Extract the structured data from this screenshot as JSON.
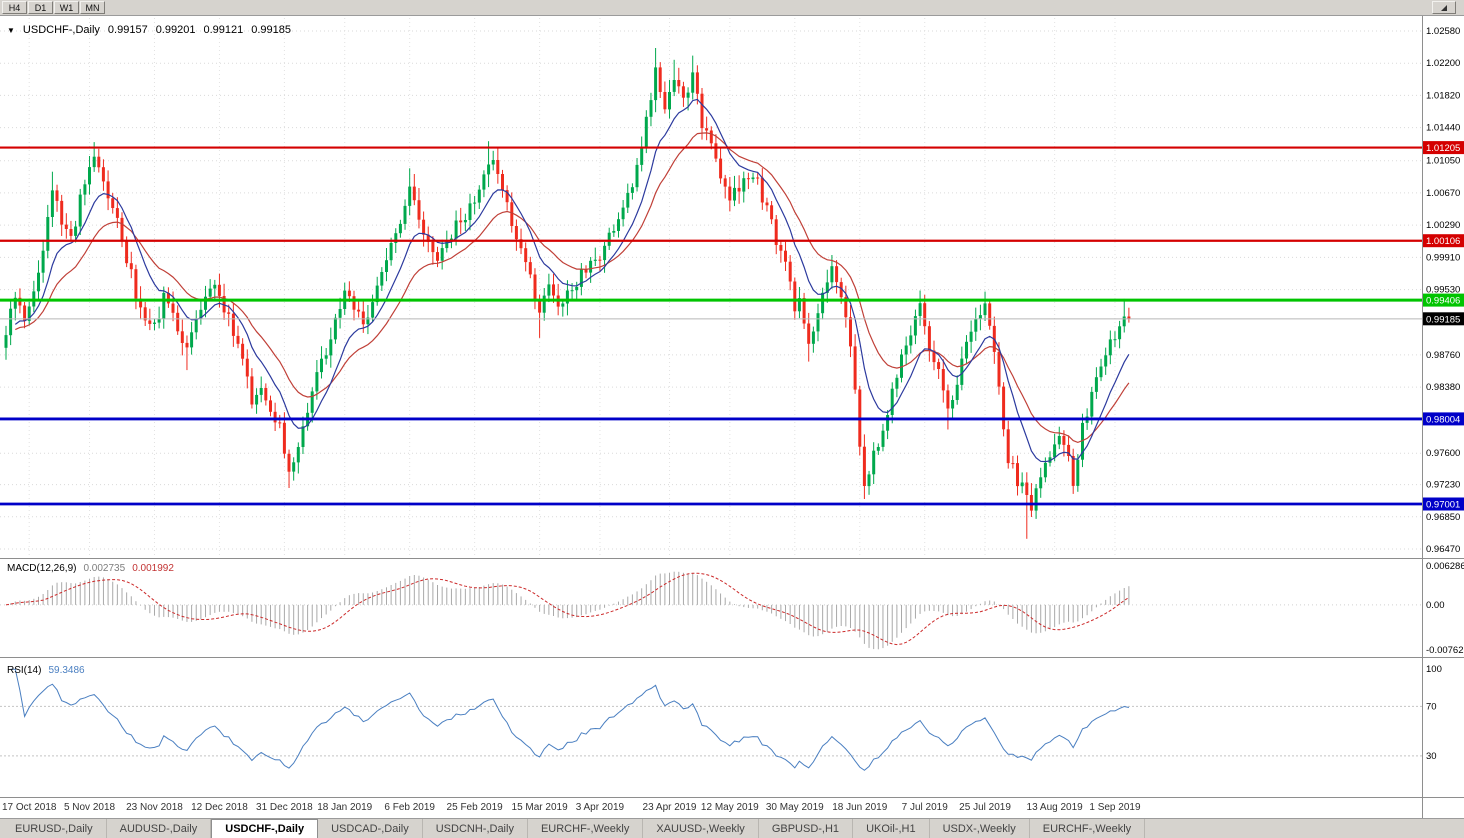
{
  "toolbar": {
    "timeframes": [
      "H4",
      "D1",
      "W1",
      "MN"
    ]
  },
  "chart_header": {
    "expander": "▼",
    "symbol_label": "USDCHF-,Daily",
    "open": "0.99157",
    "high": "0.99201",
    "low": "0.99121",
    "close": "0.99185"
  },
  "price_axis": {
    "ticks": [
      "1.02580",
      "1.02200",
      "1.01820",
      "1.01440",
      "1.01050",
      "1.00670",
      "1.00290",
      "0.99910",
      "0.99530",
      "0.98760",
      "0.98380",
      "0.97600",
      "0.97230",
      "0.96850",
      "0.96470"
    ],
    "tags": [
      {
        "value": "1.01205",
        "color": "#d40000"
      },
      {
        "value": "1.00106",
        "color": "#d40000"
      },
      {
        "value": "0.99406",
        "color": "#00c400"
      },
      {
        "value": "0.99185",
        "color": "#000000"
      },
      {
        "value": "0.98004",
        "color": "#0000c8"
      },
      {
        "value": "0.97001",
        "color": "#0000c8"
      }
    ]
  },
  "macd_panel": {
    "label": "MACD(12,26,9)",
    "value_main": "0.002735",
    "value_signal": "0.001992",
    "axis": [
      "0.006286",
      "0.00",
      "-0.00762"
    ]
  },
  "rsi_panel": {
    "label": "RSI(14)",
    "value": "59.3486",
    "axis": [
      "100",
      "70",
      "30"
    ]
  },
  "date_axis": {
    "labels": [
      [
        "17 Oct 2018",
        5
      ],
      [
        "5 Nov 2018",
        18
      ],
      [
        "23 Nov 2018",
        32
      ],
      [
        "12 Dec 2018",
        46
      ],
      [
        "31 Dec 2018",
        60
      ],
      [
        "18 Jan 2019",
        73
      ],
      [
        "6 Feb 2019",
        87
      ],
      [
        "25 Feb 2019",
        101
      ],
      [
        "15 Mar 2019",
        115
      ],
      [
        "3 Apr 2019",
        128
      ],
      [
        "23 Apr 2019",
        143
      ],
      [
        "12 May 2019",
        156
      ],
      [
        "30 May 2019",
        170
      ],
      [
        "18 Jun 2019",
        184
      ],
      [
        "7 Jul 2019",
        198
      ],
      [
        "25 Jul 2019",
        211
      ],
      [
        "13 Aug 2019",
        226
      ],
      [
        "1 Sep 2019",
        239
      ]
    ]
  },
  "tabs": {
    "items": [
      {
        "label": "EURUSD-,Daily",
        "active": false
      },
      {
        "label": "AUDUSD-,Daily",
        "active": false
      },
      {
        "label": "USDCHF-,Daily",
        "active": true
      },
      {
        "label": "USDCAD-,Daily",
        "active": false
      },
      {
        "label": "USDCNH-,Daily",
        "active": false
      },
      {
        "label": "EURCHF-,Weekly",
        "active": false
      },
      {
        "label": "XAUUSD-,Weekly",
        "active": false
      },
      {
        "label": "GBPUSD-,H1",
        "active": false
      },
      {
        "label": "UKOil-,H1",
        "active": false
      },
      {
        "label": "USDX-,Weekly",
        "active": false
      },
      {
        "label": "EURCHF-,Weekly",
        "active": false
      }
    ]
  },
  "chart_data": {
    "type": "candlestick",
    "symbol": "USDCHF",
    "timeframe": "Daily",
    "title": "USDCHF-,Daily",
    "ohlc_current": {
      "open": 0.99157,
      "high": 0.99201,
      "low": 0.99121,
      "close": 0.99185
    },
    "price_axis_range": {
      "min": 0.9647,
      "max": 1.0258
    },
    "bar_count": 243,
    "horizontal_lines": [
      {
        "price": 1.01205,
        "color": "#d40000",
        "width": 2.2
      },
      {
        "price": 1.00106,
        "color": "#d40000",
        "width": 2.2
      },
      {
        "price": 0.99406,
        "color": "#00c400",
        "width": 3
      },
      {
        "price": 0.98004,
        "color": "#0000c8",
        "width": 2.8
      },
      {
        "price": 0.97001,
        "color": "#0000c8",
        "width": 2.8
      }
    ],
    "anchor_closes": [
      [
        0,
        0.9905
      ],
      [
        2,
        0.9942
      ],
      [
        4,
        0.9922
      ],
      [
        6,
        0.9958
      ],
      [
        8,
        0.9995
      ],
      [
        10,
        1.007
      ],
      [
        12,
        1.003
      ],
      [
        14,
        1.001
      ],
      [
        16,
        1.006
      ],
      [
        18,
        1.01
      ],
      [
        20,
        1.0105
      ],
      [
        22,
        1.0068
      ],
      [
        24,
        1.003
      ],
      [
        26,
        0.999
      ],
      [
        28,
        0.9948
      ],
      [
        30,
        0.9918
      ],
      [
        32,
        0.9908
      ],
      [
        34,
        0.9942
      ],
      [
        36,
        0.9918
      ],
      [
        38,
        0.9895
      ],
      [
        39,
        0.9878
      ],
      [
        41,
        0.9912
      ],
      [
        43,
        0.9942
      ],
      [
        45,
        0.9962
      ],
      [
        47,
        0.9932
      ],
      [
        49,
        0.9902
      ],
      [
        51,
        0.9868
      ],
      [
        53,
        0.9822
      ],
      [
        55,
        0.9838
      ],
      [
        57,
        0.9812
      ],
      [
        59,
        0.9792
      ],
      [
        61,
        0.9742
      ],
      [
        63,
        0.9772
      ],
      [
        65,
        0.9812
      ],
      [
        67,
        0.9852
      ],
      [
        69,
        0.9882
      ],
      [
        71,
        0.9912
      ],
      [
        73,
        0.9952
      ],
      [
        75,
        0.9932
      ],
      [
        77,
        0.9912
      ],
      [
        79,
        0.9938
      ],
      [
        81,
        0.9968
      ],
      [
        83,
        1.0002
      ],
      [
        85,
        1.0038
      ],
      [
        87,
        1.0072
      ],
      [
        89,
        1.0042
      ],
      [
        91,
        1.0002
      ],
      [
        93,
        0.9988
      ],
      [
        95,
        1.0008
      ],
      [
        97,
        1.0028
      ],
      [
        99,
        1.0042
      ],
      [
        101,
        1.0058
      ],
      [
        103,
        1.0092
      ],
      [
        104,
        1.0108
      ],
      [
        106,
        1.0088
      ],
      [
        108,
        1.0052
      ],
      [
        110,
        1.0018
      ],
      [
        112,
        0.9988
      ],
      [
        114,
        0.9942
      ],
      [
        115,
        0.9922
      ],
      [
        117,
        0.9958
      ],
      [
        119,
        0.9938
      ],
      [
        121,
        0.9948
      ],
      [
        123,
        0.9962
      ],
      [
        125,
        0.9978
      ],
      [
        127,
        0.9988
      ],
      [
        129,
        1.0002
      ],
      [
        131,
        1.0028
      ],
      [
        133,
        1.0052
      ],
      [
        135,
        1.0078
      ],
      [
        137,
        1.0122
      ],
      [
        139,
        1.0178
      ],
      [
        140,
        1.0208
      ],
      [
        141,
        1.0182
      ],
      [
        142,
        1.0162
      ],
      [
        143,
        1.0188
      ],
      [
        144,
        1.0202
      ],
      [
        145,
        1.0188
      ],
      [
        146,
        1.0172
      ],
      [
        147,
        1.0192
      ],
      [
        148,
        1.0208
      ],
      [
        149,
        1.0178
      ],
      [
        150,
        1.0148
      ],
      [
        152,
        1.0118
      ],
      [
        154,
        1.0088
      ],
      [
        156,
        1.0058
      ],
      [
        158,
        1.0072
      ],
      [
        160,
        1.0088
      ],
      [
        162,
        1.0078
      ],
      [
        164,
        1.0048
      ],
      [
        166,
        1.0008
      ],
      [
        168,
        0.9982
      ],
      [
        170,
        0.9928
      ],
      [
        171,
        0.9942
      ],
      [
        173,
        0.9895
      ],
      [
        175,
        0.9928
      ],
      [
        177,
        0.9958
      ],
      [
        178,
        0.9982
      ],
      [
        180,
        0.9942
      ],
      [
        182,
        0.9888
      ],
      [
        183,
        0.9838
      ],
      [
        184,
        0.9762
      ],
      [
        185,
        0.9728
      ],
      [
        186,
        0.9742
      ],
      [
        188,
        0.9772
      ],
      [
        190,
        0.9812
      ],
      [
        192,
        0.9852
      ],
      [
        194,
        0.9888
      ],
      [
        196,
        0.9918
      ],
      [
        197,
        0.9932
      ],
      [
        199,
        0.9888
      ],
      [
        201,
        0.9855
      ],
      [
        203,
        0.9808
      ],
      [
        205,
        0.9848
      ],
      [
        207,
        0.9892
      ],
      [
        209,
        0.9922
      ],
      [
        211,
        0.9938
      ],
      [
        212,
        0.9915
      ],
      [
        214,
        0.9835
      ],
      [
        216,
        0.9755
      ],
      [
        218,
        0.9728
      ],
      [
        220,
        0.9712
      ],
      [
        221,
        0.97
      ],
      [
        223,
        0.9728
      ],
      [
        225,
        0.9758
      ],
      [
        227,
        0.9788
      ],
      [
        228,
        0.9772
      ],
      [
        230,
        0.9728
      ],
      [
        232,
        0.9788
      ],
      [
        234,
        0.9828
      ],
      [
        236,
        0.9858
      ],
      [
        238,
        0.9888
      ],
      [
        240,
        0.9912
      ],
      [
        241,
        0.9928
      ],
      [
        242,
        0.9919
      ]
    ],
    "wick_extremes": [
      {
        "i": 10,
        "h": 1.0092
      },
      {
        "i": 19,
        "h": 1.0127
      },
      {
        "i": 20,
        "h": 1.0119
      },
      {
        "i": 39,
        "l": 0.9858
      },
      {
        "i": 61,
        "l": 0.9719
      },
      {
        "i": 87,
        "h": 1.0096
      },
      {
        "i": 104,
        "h": 1.0128
      },
      {
        "i": 106,
        "h": 1.0121
      },
      {
        "i": 115,
        "l": 0.9896
      },
      {
        "i": 140,
        "h": 1.0238
      },
      {
        "i": 144,
        "h": 1.0224
      },
      {
        "i": 148,
        "h": 1.0229
      },
      {
        "i": 173,
        "l": 0.9868
      },
      {
        "i": 185,
        "l": 0.9706
      },
      {
        "i": 197,
        "h": 0.9944
      },
      {
        "i": 203,
        "l": 0.9788
      },
      {
        "i": 211,
        "h": 0.995
      },
      {
        "i": 220,
        "l": 0.9659
      },
      {
        "i": 230,
        "l": 0.9718
      },
      {
        "i": 241,
        "h": 0.9942
      }
    ],
    "indicators": {
      "ma_fast": {
        "type": "ema",
        "period": 10,
        "color": "#2c3a9e"
      },
      "ma_slow": {
        "type": "ema",
        "period": 21,
        "color": "#c04038"
      },
      "macd": {
        "fast": 12,
        "slow": 26,
        "signal": 9,
        "value": 0.002735,
        "signal_value": 0.001992,
        "range": [
          -0.00762,
          0.006286
        ]
      },
      "rsi": {
        "period": 14,
        "value": 59.3486,
        "levels": [
          30,
          70
        ]
      }
    },
    "colors": {
      "bull": "#00a84c",
      "bear": "#ef2b1e",
      "grid": "#dadada",
      "bid_line": "#b8b8b8",
      "macd_hist": "#a9a9a9",
      "macd_signal": "#cc2a2a",
      "rsi_line": "#4a7fc1"
    }
  }
}
